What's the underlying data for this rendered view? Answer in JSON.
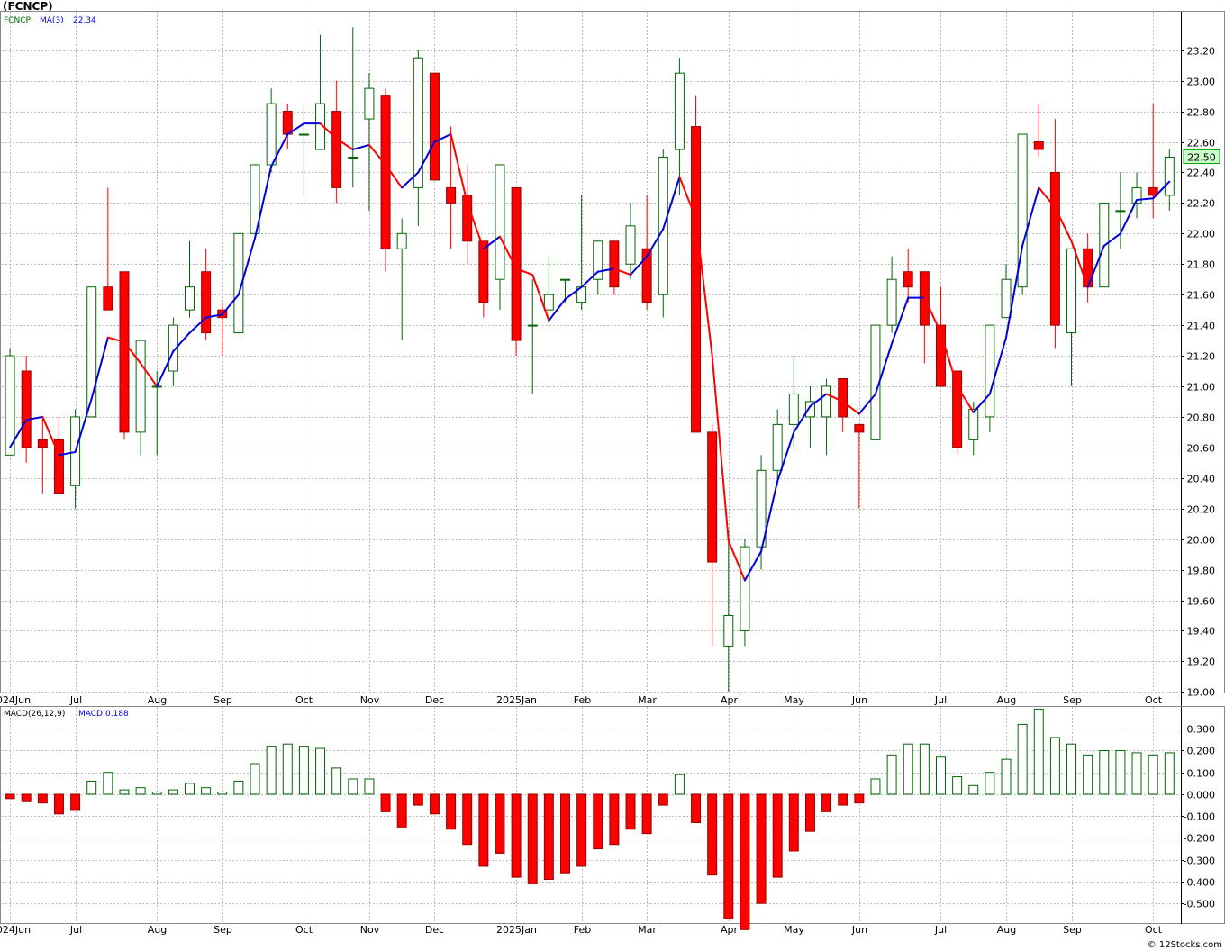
{
  "title": "(FCNCP)",
  "watermark": "© 12Stocks.com",
  "colors": {
    "up": "#006600",
    "down": "#ff0000",
    "ma_up": "#0000dd",
    "ma_down": "#ff0000",
    "grid": "#bbbbbb",
    "price_tag_border": "#00aa00",
    "price_tag_bg": "#ccffcc"
  },
  "legend": {
    "symbol": "FCNCP",
    "ma_label": "MA(3)",
    "ma_value": "22.34",
    "macd_label": "MACD(26,12,9)",
    "macd_value_label": "MACD:0.188"
  },
  "last_price_tag": "22.50",
  "x_labels": [
    "2024Jun",
    "Jul",
    "Aug",
    "Sep",
    "Oct",
    "Nov",
    "Dec",
    "2025Jan",
    "Feb",
    "Mar",
    "Apr",
    "May",
    "Jun",
    "Jul",
    "Aug",
    "Sep",
    "Oct"
  ],
  "chart_data": [
    {
      "type": "candlestick",
      "y_ticks": [
        "19.00",
        "19.20",
        "19.40",
        "19.60",
        "19.80",
        "20.00",
        "20.20",
        "20.40",
        "20.60",
        "20.80",
        "21.00",
        "21.20",
        "21.40",
        "21.60",
        "21.80",
        "22.00",
        "22.20",
        "22.40",
        "22.60",
        "22.80",
        "23.00",
        "23.20"
      ],
      "ylim": [
        18.99,
        23.44
      ],
      "x_tick_week_index": [
        0,
        4,
        9,
        13,
        18,
        22,
        26,
        31,
        35,
        39,
        44,
        48,
        52,
        57,
        61,
        65,
        70
      ],
      "ohlc": [
        [
          20.55,
          21.25,
          20.55,
          21.2
        ],
        [
          21.1,
          21.2,
          20.5,
          20.6
        ],
        [
          20.65,
          20.8,
          20.3,
          20.6
        ],
        [
          20.65,
          20.8,
          20.3,
          20.3
        ],
        [
          20.35,
          20.85,
          20.2,
          20.8
        ],
        [
          20.8,
          21.65,
          20.8,
          21.65
        ],
        [
          21.65,
          22.3,
          21.5,
          21.5
        ],
        [
          21.75,
          21.75,
          20.65,
          20.7
        ],
        [
          20.7,
          21.3,
          20.55,
          21.3
        ],
        [
          21.0,
          21.1,
          20.55,
          21.0
        ],
        [
          21.1,
          21.45,
          21.0,
          21.4
        ],
        [
          21.5,
          21.95,
          21.45,
          21.65
        ],
        [
          21.75,
          21.9,
          21.3,
          21.35
        ],
        [
          21.5,
          21.55,
          21.2,
          21.45
        ],
        [
          21.35,
          22.0,
          21.35,
          22.0
        ],
        [
          22.0,
          22.45,
          22.0,
          22.45
        ],
        [
          22.45,
          22.95,
          22.4,
          22.85
        ],
        [
          22.8,
          22.85,
          22.55,
          22.65
        ],
        [
          22.65,
          22.85,
          22.25,
          22.65
        ],
        [
          22.55,
          23.3,
          22.55,
          22.85
        ],
        [
          22.8,
          23.0,
          22.2,
          22.3
        ],
        [
          22.5,
          23.35,
          22.3,
          22.5
        ],
        [
          22.75,
          23.05,
          22.15,
          22.95
        ],
        [
          22.9,
          22.95,
          21.75,
          21.9
        ],
        [
          21.9,
          22.1,
          21.3,
          22.0
        ],
        [
          22.3,
          23.2,
          22.05,
          23.15
        ],
        [
          23.05,
          23.05,
          22.35,
          22.35
        ],
        [
          22.3,
          22.7,
          21.9,
          22.2
        ],
        [
          22.25,
          22.45,
          21.8,
          21.95
        ],
        [
          21.95,
          21.95,
          21.45,
          21.55
        ],
        [
          21.7,
          22.45,
          21.5,
          22.45
        ],
        [
          22.3,
          22.3,
          21.2,
          21.3
        ],
        [
          21.4,
          21.7,
          20.95,
          21.4
        ],
        [
          21.5,
          21.85,
          21.4,
          21.6
        ],
        [
          21.7,
          21.7,
          21.55,
          21.7
        ],
        [
          21.55,
          22.25,
          21.5,
          21.65
        ],
        [
          21.7,
          21.95,
          21.6,
          21.95
        ],
        [
          21.95,
          21.95,
          21.6,
          21.65
        ],
        [
          21.8,
          22.2,
          21.7,
          22.05
        ],
        [
          21.9,
          22.25,
          21.5,
          21.55
        ],
        [
          21.6,
          22.55,
          21.45,
          22.5
        ],
        [
          22.55,
          23.15,
          22.25,
          23.05
        ],
        [
          22.7,
          22.9,
          20.7,
          20.7
        ],
        [
          20.7,
          20.75,
          19.3,
          19.85
        ],
        [
          19.3,
          20.05,
          19.0,
          19.5
        ],
        [
          19.4,
          20.0,
          19.3,
          19.95
        ],
        [
          19.95,
          20.55,
          19.8,
          20.45
        ],
        [
          20.45,
          20.85,
          20.35,
          20.75
        ],
        [
          20.75,
          21.2,
          20.6,
          20.95
        ],
        [
          20.8,
          21.0,
          20.6,
          20.9
        ],
        [
          20.8,
          21.05,
          20.55,
          21.0
        ],
        [
          21.05,
          21.05,
          20.7,
          20.8
        ],
        [
          20.75,
          20.75,
          20.2,
          20.7
        ],
        [
          20.65,
          21.4,
          20.65,
          21.4
        ],
        [
          21.4,
          21.85,
          21.35,
          21.7
        ],
        [
          21.75,
          21.9,
          21.55,
          21.65
        ],
        [
          21.75,
          21.75,
          21.15,
          21.4
        ],
        [
          21.4,
          21.65,
          21.0,
          21.0
        ],
        [
          21.1,
          21.1,
          20.55,
          20.6
        ],
        [
          20.65,
          20.9,
          20.55,
          20.85
        ],
        [
          20.8,
          21.4,
          20.7,
          21.4
        ],
        [
          21.45,
          21.8,
          21.45,
          21.7
        ],
        [
          21.65,
          22.65,
          21.6,
          22.65
        ],
        [
          22.6,
          22.85,
          22.5,
          22.55
        ],
        [
          22.4,
          22.75,
          21.25,
          21.4
        ],
        [
          21.35,
          21.9,
          21.0,
          21.9
        ],
        [
          21.9,
          22.0,
          21.55,
          21.65
        ],
        [
          21.65,
          22.2,
          21.65,
          22.2
        ],
        [
          22.15,
          22.4,
          21.9,
          22.15
        ],
        [
          22.2,
          22.4,
          22.1,
          22.3
        ],
        [
          22.3,
          22.85,
          22.1,
          22.25
        ],
        [
          22.25,
          22.55,
          22.15,
          22.5
        ]
      ],
      "ma3": [
        20.6,
        20.78,
        20.8,
        20.55,
        20.57,
        20.92,
        21.32,
        21.29,
        21.15,
        21.0,
        21.23,
        21.35,
        21.45,
        21.47,
        21.6,
        21.97,
        22.44,
        22.65,
        22.72,
        22.72,
        22.62,
        22.55,
        22.58,
        22.45,
        22.3,
        22.4,
        22.6,
        22.65,
        22.2,
        21.9,
        21.98,
        21.77,
        21.73,
        21.43,
        21.57,
        21.65,
        21.75,
        21.77,
        21.73,
        21.85,
        22.03,
        22.37,
        22.1,
        21.2,
        19.99,
        19.73,
        19.92,
        20.38,
        20.7,
        20.87,
        20.95,
        20.9,
        20.82,
        20.95,
        21.28,
        21.58,
        21.58,
        21.35,
        21.0,
        20.83,
        20.95,
        21.32,
        21.92,
        22.3,
        22.17,
        21.95,
        21.65,
        21.92,
        22.0,
        22.22,
        22.23,
        22.34
      ]
    },
    {
      "type": "bar",
      "name": "MACD(26,12,9)",
      "y_ticks": [
        "-0.500",
        "-0.400",
        "-0.300",
        "-0.200",
        "-0.100",
        "0.000",
        "0.100",
        "0.200",
        "0.300"
      ],
      "ylim": [
        -0.59,
        0.4
      ],
      "values": [
        -0.02,
        -0.03,
        -0.04,
        -0.09,
        -0.07,
        0.06,
        0.1,
        0.02,
        0.03,
        0.01,
        0.02,
        0.05,
        0.03,
        0.01,
        0.06,
        0.14,
        0.22,
        0.23,
        0.22,
        0.21,
        0.12,
        0.07,
        0.07,
        -0.08,
        -0.15,
        -0.05,
        -0.09,
        -0.16,
        -0.23,
        -0.33,
        -0.27,
        -0.38,
        -0.41,
        -0.39,
        -0.36,
        -0.33,
        -0.25,
        -0.23,
        -0.16,
        -0.18,
        -0.05,
        0.09,
        -0.13,
        -0.37,
        -0.57,
        -0.62,
        -0.5,
        -0.38,
        -0.26,
        -0.17,
        -0.08,
        -0.05,
        -0.04,
        0.07,
        0.18,
        0.23,
        0.23,
        0.17,
        0.08,
        0.04,
        0.1,
        0.16,
        0.32,
        0.39,
        0.26,
        0.23,
        0.18,
        0.2,
        0.2,
        0.19,
        0.18,
        0.19
      ]
    }
  ]
}
